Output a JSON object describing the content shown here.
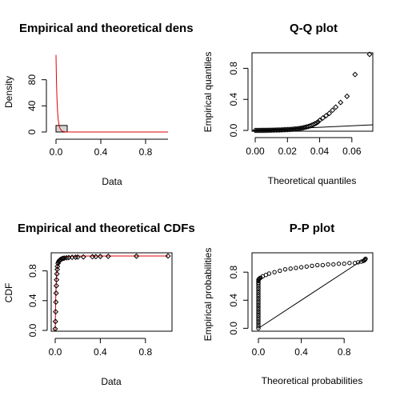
{
  "chart_data": [
    {
      "type": "histogram",
      "title": "Empirical and theoretical dens",
      "xlabel": "Data",
      "ylabel": "Density",
      "xlim": [
        0,
        1
      ],
      "ylim": [
        0,
        120
      ],
      "x_ticks": [
        0.0,
        0.4,
        0.8
      ],
      "x_tick_labels": [
        "0.0",
        "0.4",
        "0.8"
      ],
      "y_ticks": [
        0,
        40,
        80
      ],
      "y_tick_labels": [
        "0",
        "40",
        "80"
      ],
      "bars": [
        {
          "x0": 0.0,
          "x1": 0.1,
          "height": 10
        }
      ],
      "theoretical_curve": {
        "color": "#e00000",
        "x": [
          0.0,
          0.002,
          0.005,
          0.008,
          0.012,
          0.016,
          0.02,
          0.025,
          0.03,
          0.04,
          0.05,
          0.06,
          0.08,
          0.1,
          0.15,
          0.2,
          0.3,
          0.5,
          0.8,
          1.0
        ],
        "y": [
          118,
          95,
          72,
          55,
          38,
          27,
          19,
          13,
          8,
          4,
          2,
          1,
          0.4,
          0.15,
          0.05,
          0,
          0,
          0,
          0,
          0
        ]
      }
    },
    {
      "type": "scatter",
      "title": "Q-Q plot",
      "xlabel": "Theoretical quantiles",
      "ylabel": "Empirical quantiles",
      "xlim": [
        -0.002,
        0.073
      ],
      "ylim": [
        -0.01,
        1.0
      ],
      "x_ticks": [
        0.0,
        0.02,
        0.04,
        0.06
      ],
      "x_tick_labels": [
        "0.00",
        "0.02",
        "0.04",
        "0.06"
      ],
      "y_ticks": [
        0.0,
        0.4,
        0.8
      ],
      "y_tick_labels": [
        "0.0",
        "0.4",
        "0.8"
      ],
      "reference_line": {
        "x0": -0.002,
        "y0": -0.002,
        "x1": 0.073,
        "y1": 0.073
      },
      "points": {
        "x": [
          0.0,
          0.001,
          0.002,
          0.003,
          0.004,
          0.005,
          0.006,
          0.007,
          0.008,
          0.009,
          0.01,
          0.011,
          0.012,
          0.013,
          0.014,
          0.015,
          0.016,
          0.017,
          0.018,
          0.019,
          0.02,
          0.021,
          0.022,
          0.023,
          0.024,
          0.025,
          0.026,
          0.027,
          0.028,
          0.029,
          0.03,
          0.031,
          0.032,
          0.033,
          0.034,
          0.035,
          0.036,
          0.037,
          0.038,
          0.039,
          0.04,
          0.042,
          0.044,
          0.046,
          0.048,
          0.05,
          0.053,
          0.057,
          0.062,
          0.071
        ],
        "y": [
          0.0,
          0.0,
          0.0,
          0.0,
          0.001,
          0.001,
          0.001,
          0.002,
          0.002,
          0.003,
          0.003,
          0.004,
          0.004,
          0.005,
          0.006,
          0.006,
          0.007,
          0.008,
          0.009,
          0.01,
          0.011,
          0.012,
          0.013,
          0.015,
          0.017,
          0.019,
          0.021,
          0.024,
          0.027,
          0.03,
          0.035,
          0.04,
          0.045,
          0.05,
          0.058,
          0.066,
          0.075,
          0.085,
          0.096,
          0.11,
          0.13,
          0.16,
          0.19,
          0.22,
          0.26,
          0.3,
          0.36,
          0.44,
          0.72,
          0.98
        ]
      }
    },
    {
      "type": "line",
      "title": "Empirical and theoretical CDFs",
      "xlabel": "Data",
      "ylabel": "CDF",
      "xlim": [
        0,
        1
      ],
      "ylim": [
        0,
        1
      ],
      "x_ticks": [
        0.0,
        0.4,
        0.8
      ],
      "x_tick_labels": [
        "0.0",
        "0.4",
        "0.8"
      ],
      "y_ticks": [
        0.0,
        0.4,
        0.8
      ],
      "y_tick_labels": [
        "0.0",
        "0.4",
        "0.8"
      ],
      "theoretical_curve": {
        "color": "#e00000",
        "x": [
          0.0,
          0.003,
          0.006,
          0.01,
          0.015,
          0.02,
          0.03,
          0.04,
          0.05,
          0.07,
          0.1,
          0.15,
          0.2,
          0.3,
          0.5,
          1.0
        ],
        "y": [
          0.0,
          0.3,
          0.5,
          0.68,
          0.8,
          0.87,
          0.93,
          0.96,
          0.97,
          0.985,
          0.992,
          0.997,
          0.999,
          1.0,
          1.0,
          1.0
        ]
      },
      "empirical_points": {
        "x": [
          0.0,
          0.002,
          0.004,
          0.006,
          0.008,
          0.01,
          0.012,
          0.015,
          0.018,
          0.02,
          0.025,
          0.03,
          0.035,
          0.04,
          0.05,
          0.06,
          0.07,
          0.08,
          0.1,
          0.12,
          0.15,
          0.18,
          0.2,
          0.25,
          0.33,
          0.36,
          0.4,
          0.47,
          0.72,
          1.0
        ],
        "y": [
          0.02,
          0.12,
          0.25,
          0.38,
          0.5,
          0.6,
          0.68,
          0.76,
          0.82,
          0.86,
          0.9,
          0.92,
          0.935,
          0.945,
          0.955,
          0.962,
          0.968,
          0.972,
          0.976,
          0.979,
          0.982,
          0.984,
          0.986,
          0.988,
          0.99,
          0.992,
          0.994,
          0.996,
          0.998,
          1.0
        ]
      }
    },
    {
      "type": "scatter",
      "title": "P-P plot",
      "xlabel": "Theoretical probabilities",
      "ylabel": "Empirical probabilities",
      "xlim": [
        -0.03,
        1.03
      ],
      "ylim": [
        -0.03,
        1.03
      ],
      "x_ticks": [
        0.0,
        0.4,
        0.8
      ],
      "x_tick_labels": [
        "0.0",
        "0.4",
        "0.8"
      ],
      "y_ticks": [
        0.0,
        0.4,
        0.8
      ],
      "y_tick_labels": [
        "0.0",
        "0.4",
        "0.8"
      ],
      "reference_line": {
        "x0": 0,
        "y0": 0,
        "x1": 1,
        "y1": 1
      },
      "points": {
        "x": [
          0.0,
          0.0,
          0.0,
          0.0,
          0.0,
          0.0,
          0.0,
          0.0,
          0.0,
          0.0,
          0.0,
          0.0,
          0.0,
          0.0,
          0.0,
          0.0,
          0.0,
          0.0,
          0.0,
          0.0,
          0.0,
          0.0,
          0.0,
          0.0,
          0.0,
          0.005,
          0.01,
          0.02,
          0.04,
          0.07,
          0.1,
          0.15,
          0.2,
          0.25,
          0.3,
          0.35,
          0.4,
          0.45,
          0.5,
          0.55,
          0.6,
          0.65,
          0.7,
          0.75,
          0.8,
          0.85,
          0.9,
          0.93,
          0.96,
          0.98,
          0.99,
          0.995,
          1.0
        ],
        "y": [
          0.0,
          0.03,
          0.06,
          0.09,
          0.12,
          0.15,
          0.18,
          0.21,
          0.24,
          0.27,
          0.3,
          0.33,
          0.36,
          0.39,
          0.42,
          0.45,
          0.48,
          0.51,
          0.54,
          0.57,
          0.6,
          0.63,
          0.65,
          0.67,
          0.69,
          0.7,
          0.71,
          0.72,
          0.74,
          0.76,
          0.78,
          0.8,
          0.82,
          0.84,
          0.85,
          0.86,
          0.87,
          0.88,
          0.89,
          0.9,
          0.9,
          0.91,
          0.91,
          0.92,
          0.92,
          0.93,
          0.93,
          0.94,
          0.95,
          0.96,
          0.97,
          0.98,
          0.99
        ]
      }
    }
  ]
}
